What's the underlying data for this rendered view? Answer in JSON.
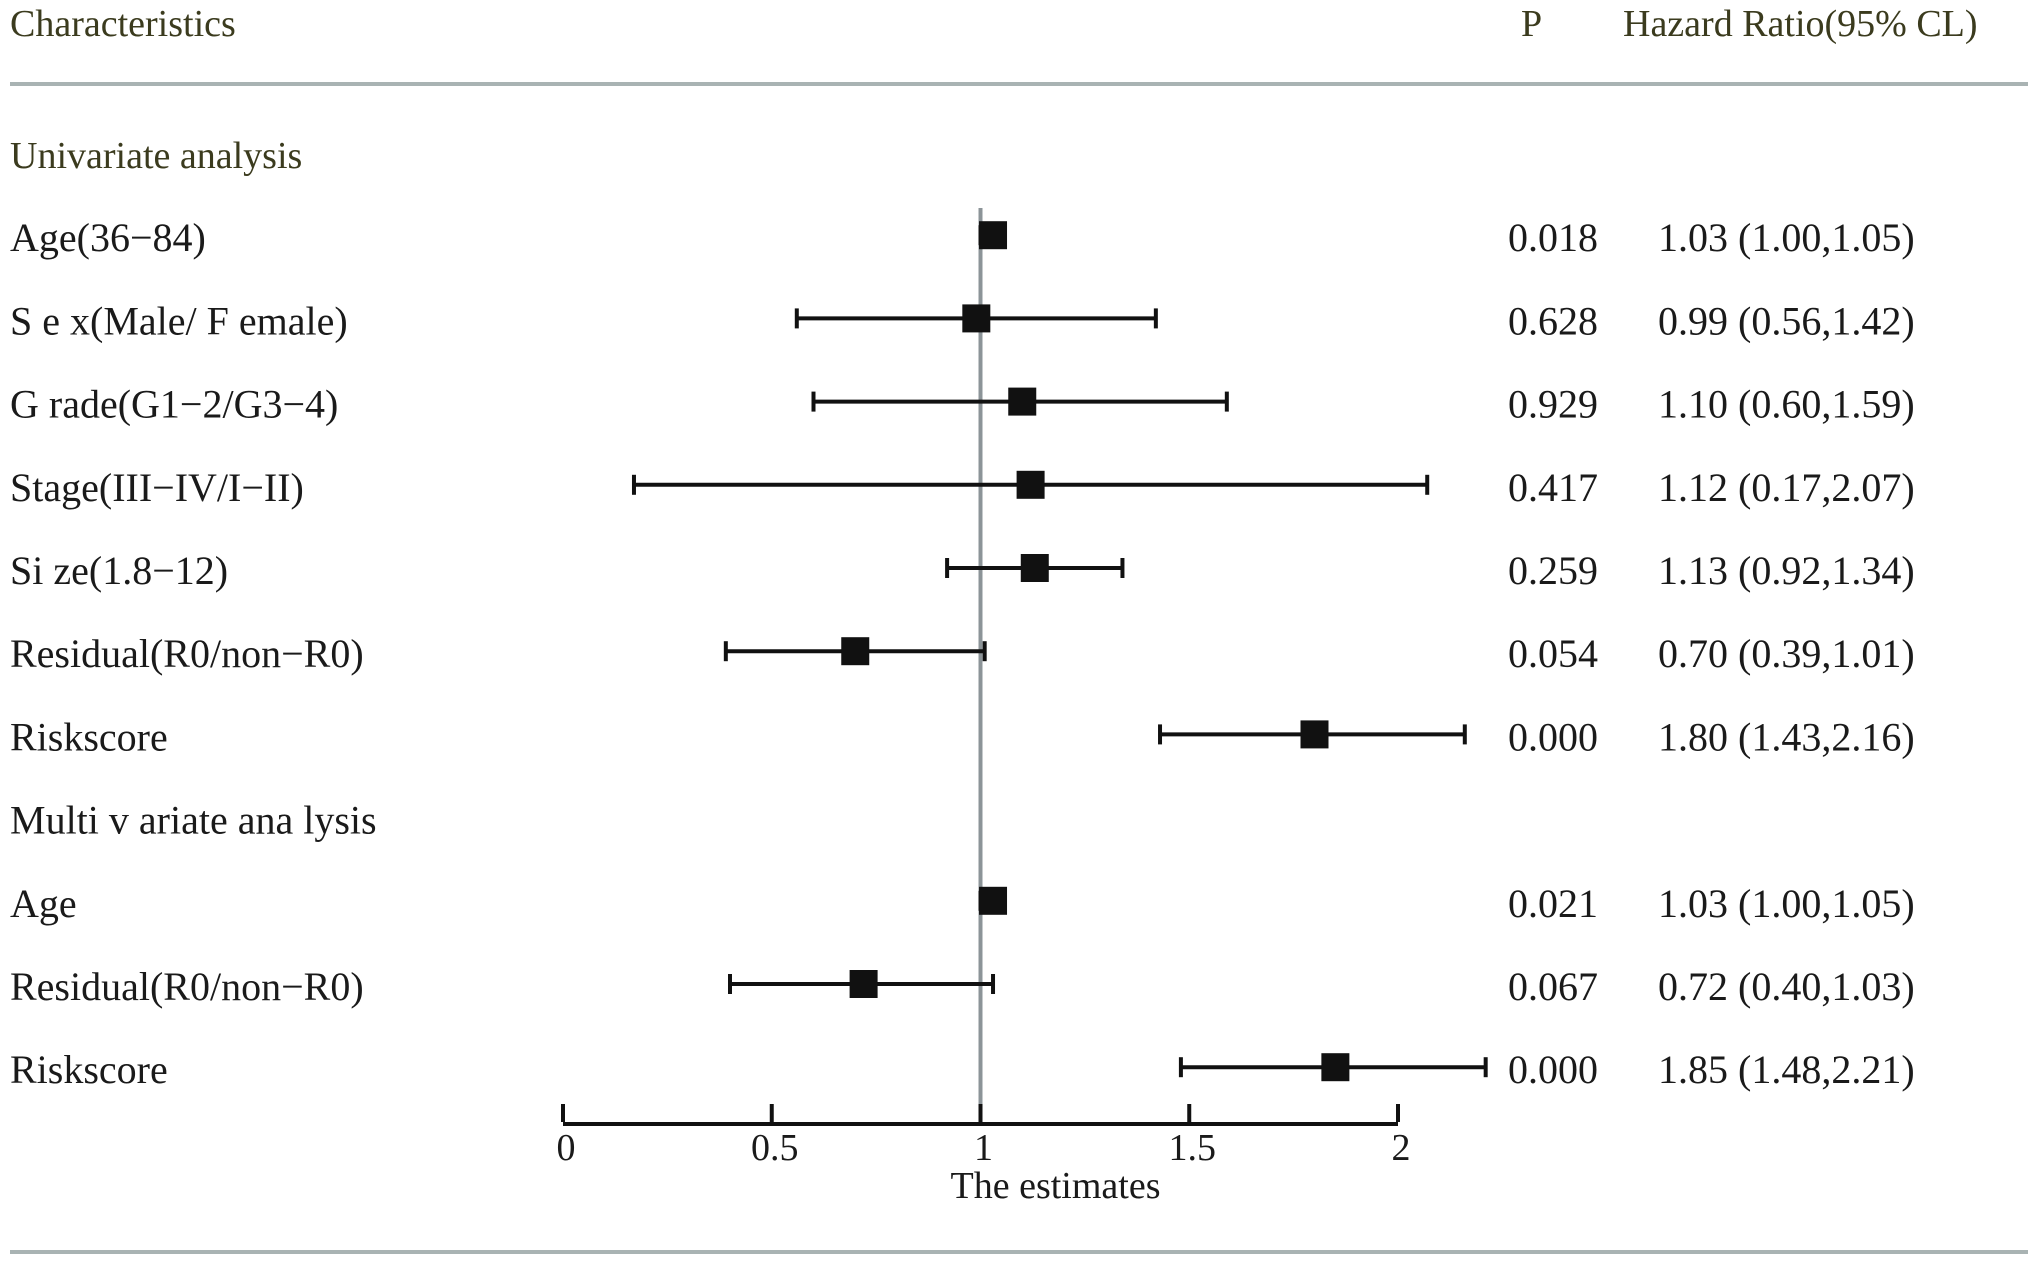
{
  "chart_data": {
    "type": "forest",
    "columns": {
      "characteristics": "Characteristics",
      "p": "P",
      "hr": "Hazard Ratio(95% CL)"
    },
    "xlabel": "The estimates",
    "xlim": [
      0,
      2
    ],
    "xticks": [
      "0",
      "0.5",
      "1",
      "1.5",
      "2"
    ],
    "reference_line": 1,
    "rows": [
      {
        "kind": "section",
        "label": "Univariate analysis"
      },
      {
        "kind": "item",
        "label": "Age(36−84)",
        "estimate": 1.03,
        "lower": 1.0,
        "upper": 1.05,
        "p": "0.018",
        "hr_text": "1.03 (1.00,1.05)"
      },
      {
        "kind": "item",
        "label": "S e x(Male/  F emale)",
        "estimate": 0.99,
        "lower": 0.56,
        "upper": 1.42,
        "p": "0.628",
        "hr_text": "0.99 (0.56,1.42)"
      },
      {
        "kind": "item",
        "label": "G rade(G1−2/G3−4)",
        "estimate": 1.1,
        "lower": 0.6,
        "upper": 1.59,
        "p": "0.929",
        "hr_text": "1.10 (0.60,1.59)"
      },
      {
        "kind": "item",
        "label": "Stage(III−IV/I−II)",
        "estimate": 1.12,
        "lower": 0.17,
        "upper": 2.07,
        "p": "0.417",
        "hr_text": "1.12 (0.17,2.07)"
      },
      {
        "kind": "item",
        "label": "Si ze(1.8−12)",
        "estimate": 1.13,
        "lower": 0.92,
        "upper": 1.34,
        "p": "0.259",
        "hr_text": "1.13 (0.92,1.34)"
      },
      {
        "kind": "item",
        "label": "Residual(R0/non−R0)",
        "estimate": 0.7,
        "lower": 0.39,
        "upper": 1.01,
        "p": "0.054",
        "hr_text": "0.70 (0.39,1.01)"
      },
      {
        "kind": "item",
        "label": "Riskscore",
        "estimate": 1.8,
        "lower": 1.43,
        "upper": 2.16,
        "p": "0.000",
        "hr_text": "1.80 (1.43,2.16)"
      },
      {
        "kind": "section",
        "label": "Multi   v ariate ana        lysis"
      },
      {
        "kind": "item",
        "label": "Age",
        "estimate": 1.03,
        "lower": 1.0,
        "upper": 1.05,
        "p": "0.021",
        "hr_text": "1.03 (1.00,1.05)"
      },
      {
        "kind": "item",
        "label": "Residual(R0/non−R0)",
        "estimate": 0.72,
        "lower": 0.4,
        "upper": 1.03,
        "p": "0.067",
        "hr_text": "0.72 (0.40,1.03)"
      },
      {
        "kind": "item",
        "label": "Riskscore",
        "estimate": 1.85,
        "lower": 1.48,
        "upper": 2.21,
        "p": "0.000",
        "hr_text": "1.85 (1.48,2.21)"
      }
    ],
    "colors": {
      "header_text": "#3b3b1e",
      "rule": "#a9b3b3",
      "reference_line": "#8c9498",
      "marks": "#111111"
    }
  }
}
